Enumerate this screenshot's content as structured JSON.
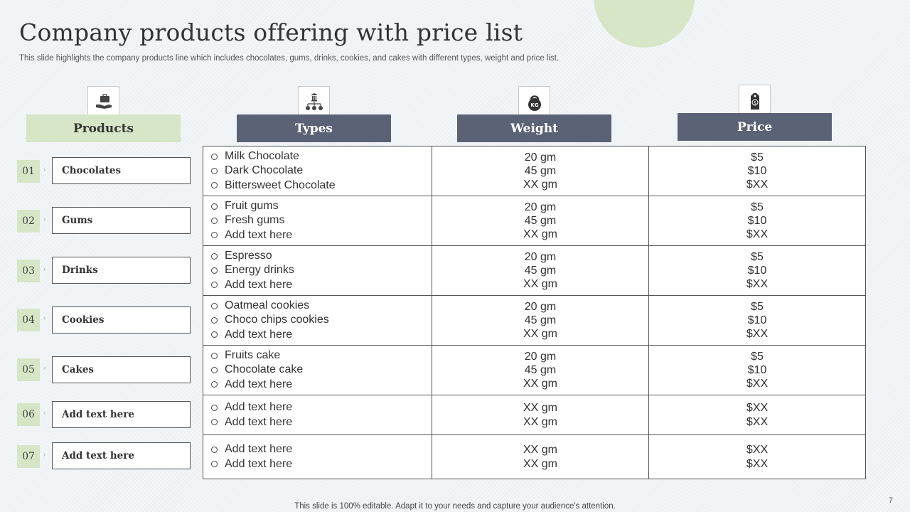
{
  "title": "Company products offering with price list",
  "subtitle": "This slide highlights the company products line which includes chocolates, gums, drinks, cookies, and cakes with different types, weight and price list.",
  "headers": {
    "products": "Products",
    "types": "Types",
    "weight": "Weight",
    "price": "Price"
  },
  "icons": {
    "products": "hand-briefcase-icon",
    "types": "hierarchy-icon",
    "weight": "kettlebell-icon",
    "price": "price-tag-icon"
  },
  "products": [
    {
      "num": "01",
      "label": "Chocolates"
    },
    {
      "num": "02",
      "label": "Gums"
    },
    {
      "num": "03",
      "label": "Drinks"
    },
    {
      "num": "04",
      "label": "Cookies"
    },
    {
      "num": "05",
      "label": "Cakes"
    },
    {
      "num": "06",
      "label": "Add text here"
    },
    {
      "num": "07",
      "label": "Add text here"
    }
  ],
  "rows": [
    {
      "types": [
        "Milk Chocolate",
        "Dark Chocolate",
        "Bittersweet Chocolate"
      ],
      "weights": [
        "20 gm",
        "45 gm",
        "XX gm"
      ],
      "prices": [
        "$5",
        "$10",
        "$XX"
      ]
    },
    {
      "types": [
        "Fruit gums",
        "Fresh gums",
        "Add text here"
      ],
      "weights": [
        "20 gm",
        "45 gm",
        "XX gm"
      ],
      "prices": [
        "$5",
        "$10",
        "$XX"
      ]
    },
    {
      "types": [
        "Espresso",
        "Energy drinks",
        "Add text here"
      ],
      "weights": [
        "20 gm",
        "45 gm",
        "XX gm"
      ],
      "prices": [
        "$5",
        "$10",
        "$XX"
      ]
    },
    {
      "types": [
        "Oatmeal cookies",
        "Choco chips cookies",
        "Add text here"
      ],
      "weights": [
        "20 gm",
        "45 gm",
        "XX gm"
      ],
      "prices": [
        "$5",
        "$10",
        "$XX"
      ]
    },
    {
      "types": [
        "Fruits cake",
        "Chocolate cake",
        "Add text here"
      ],
      "weights": [
        "20 gm",
        "45 gm",
        "XX gm"
      ],
      "prices": [
        "$5",
        "$10",
        "$XX"
      ]
    },
    {
      "types": [
        "Add text here",
        "Add text here"
      ],
      "weights": [
        "XX gm",
        "XX gm"
      ],
      "prices": [
        "$XX",
        "$XX"
      ]
    },
    {
      "types": [
        "Add text here",
        "Add text here"
      ],
      "weights": [
        "XX gm",
        "XX gm"
      ],
      "prices": [
        "$XX",
        "$XX"
      ]
    }
  ],
  "footer": "This slide is 100% editable. Adapt it to your needs and capture your audience's attention.",
  "page_number": "7",
  "colors": {
    "green": "#d6e6c7",
    "header_dark": "#5c6275",
    "border": "#555555"
  }
}
